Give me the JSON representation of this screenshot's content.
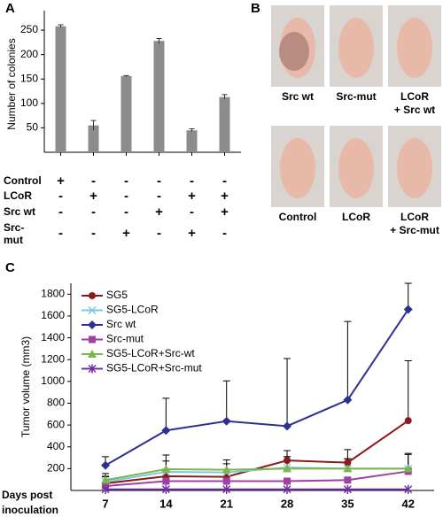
{
  "chart_data": [
    {
      "type": "bar",
      "panel": "A",
      "ylabel": "Number of colonies",
      "categories": [
        null,
        null,
        null,
        null,
        null,
        null
      ],
      "values": [
        258,
        55,
        156,
        228,
        45,
        113
      ],
      "errors": [
        3,
        10,
        1,
        5,
        3,
        5
      ],
      "color": "#8c8c8c",
      "ylim": [
        0,
        290
      ],
      "yticks": [
        50,
        100,
        150,
        200,
        250
      ],
      "table": [
        {
          "name": [
            "Control"
          ],
          "signs": [
            "+",
            "-",
            "-",
            "-",
            "-",
            "-"
          ]
        },
        {
          "name": [
            "LCoR"
          ],
          "signs": [
            "-",
            "+",
            "-",
            "-",
            "+",
            "+"
          ]
        },
        {
          "name": [
            "Src wt"
          ],
          "signs": [
            "-",
            "-",
            "-",
            "+",
            "-",
            "+"
          ]
        },
        {
          "name": [
            "Src-",
            "mut"
          ],
          "signs": [
            "-",
            "-",
            "+",
            "-",
            "+",
            "-"
          ]
        }
      ]
    },
    {
      "type": "line",
      "panel": "C",
      "ylabel": "Tumor volume (mm3)",
      "xlabel": [
        "Days post",
        "inoculation"
      ],
      "x": [
        7,
        14,
        21,
        28,
        35,
        42
      ],
      "xlim": [
        3,
        45
      ],
      "xticks": [
        7,
        14,
        21,
        28,
        35,
        42
      ],
      "ylim": [
        0,
        1900
      ],
      "yticks": [
        200,
        400,
        600,
        800,
        1000,
        1200,
        1400,
        1600,
        1800
      ],
      "series": [
        {
          "name": "SG5",
          "color": "#8b1a1a",
          "marker": "circle",
          "values": [
            65,
            130,
            125,
            275,
            255,
            640
          ],
          "errors": [
            60,
            50,
            40,
            90,
            120,
            550
          ]
        },
        {
          "name": "SG5-LCoR",
          "color": "#7fc8e0",
          "marker": "x",
          "values": [
            80,
            170,
            165,
            210,
            200,
            200
          ],
          "errors": [
            50,
            100,
            80,
            100,
            90,
            130
          ]
        },
        {
          "name": "Src wt",
          "color": "#2e3192",
          "marker": "diamond",
          "values": [
            230,
            550,
            635,
            590,
            830,
            1660
          ],
          "errors": [
            80,
            295,
            370,
            620,
            720,
            300
          ]
        },
        {
          "name": "Src-mut",
          "color": "#a040a0",
          "marker": "square",
          "values": [
            40,
            85,
            85,
            85,
            95,
            175
          ],
          "errors": [
            20,
            20,
            20,
            20,
            20,
            30
          ]
        },
        {
          "name": "SG5-LCoR+Src-wt",
          "color": "#7ab648",
          "marker": "triangle",
          "values": [
            95,
            195,
            190,
            200,
            200,
            200
          ],
          "errors": [
            60,
            130,
            90,
            110,
            90,
            140
          ]
        },
        {
          "name": "SG5-LCoR+Src-mut",
          "color": "#7030a0",
          "marker": "asterisk",
          "values": [
            10,
            10,
            10,
            10,
            10,
            10
          ],
          "errors": [
            0,
            0,
            0,
            0,
            0,
            0
          ]
        }
      ]
    }
  ],
  "panel_b": {
    "panel": "B",
    "photos": [
      {
        "caption": [
          "Src wt"
        ]
      },
      {
        "caption": [
          "Src-mut"
        ]
      },
      {
        "caption": [
          "LCoR",
          "+ Src wt"
        ]
      },
      {
        "caption": [
          "Control"
        ]
      },
      {
        "caption": [
          "LCoR"
        ]
      },
      {
        "caption": [
          "LCoR",
          "+ Src-mut"
        ]
      }
    ]
  }
}
